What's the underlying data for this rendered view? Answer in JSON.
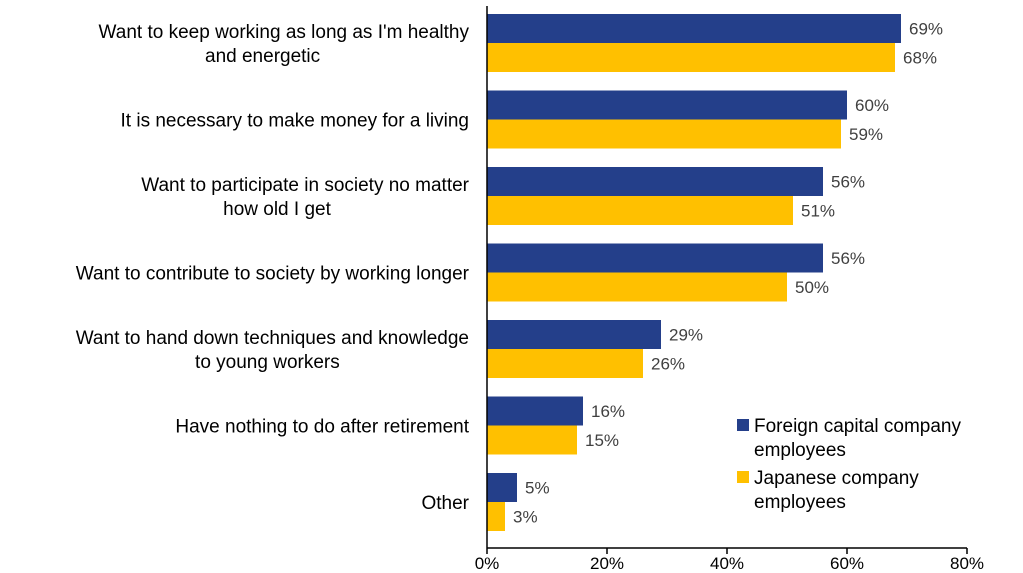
{
  "chart_data": {
    "type": "bar",
    "orientation": "horizontal",
    "categories": [
      [
        "Want to keep working as long as I'm healthy",
        "and energetic"
      ],
      [
        "It is necessary to make money for a living"
      ],
      [
        "Want to participate in society no matter",
        "how old I get"
      ],
      [
        "Want to contribute to society by working longer"
      ],
      [
        "Want to hand down techniques and knowledge",
        "to young workers"
      ],
      [
        "Have nothing to do after retirement"
      ],
      [
        "Other"
      ]
    ],
    "series": [
      {
        "name": [
          "Foreign capital company",
          "employees"
        ],
        "color": "#243f8a",
        "values": [
          69,
          60,
          56,
          56,
          29,
          16,
          5
        ],
        "labels": [
          "69%",
          "60%",
          "56%",
          "56%",
          "29%",
          "16%",
          "5%"
        ]
      },
      {
        "name": [
          "Japanese company",
          "employees"
        ],
        "color": "#ffc000",
        "values": [
          68,
          59,
          51,
          50,
          26,
          15,
          3
        ],
        "labels": [
          "68%",
          "59%",
          "51%",
          "50%",
          "26%",
          "15%",
          "3%"
        ]
      }
    ],
    "xlim": [
      0,
      80
    ],
    "xticks": [
      0,
      20,
      40,
      60,
      80
    ],
    "xtick_labels": [
      "0%",
      "20%",
      "40%",
      "60%",
      "80%"
    ],
    "grid": false,
    "legend_position": "bottom-right"
  }
}
